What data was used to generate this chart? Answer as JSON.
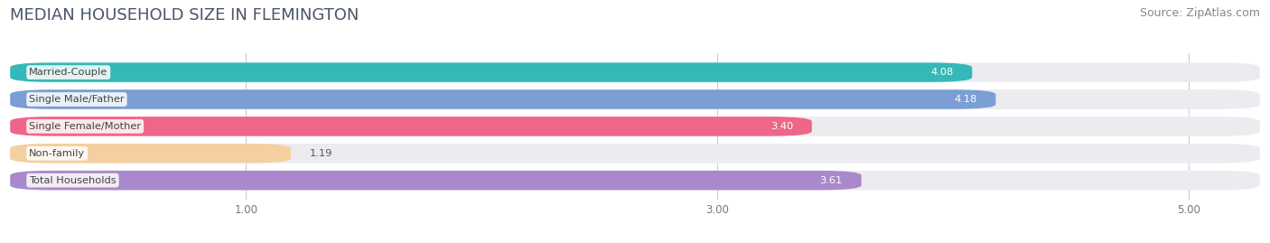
{
  "title": "MEDIAN HOUSEHOLD SIZE IN FLEMINGTON",
  "source": "Source: ZipAtlas.com",
  "categories": [
    "Married-Couple",
    "Single Male/Father",
    "Single Female/Mother",
    "Non-family",
    "Total Households"
  ],
  "values": [
    4.08,
    4.18,
    3.4,
    1.19,
    3.61
  ],
  "bar_colors": [
    "#36b8b8",
    "#7b9fd4",
    "#ee6688",
    "#f5cfa0",
    "#aa88cc"
  ],
  "bar_bg_color": "#ebebf0",
  "label_text_color": "#444444",
  "value_colors_inside": [
    "white",
    "white",
    "white",
    "#555555",
    "white"
  ],
  "xlim_left": 0.0,
  "xlim_right": 5.3,
  "xticks": [
    1.0,
    3.0,
    5.0
  ],
  "background_color": "#ffffff",
  "title_fontsize": 13,
  "source_fontsize": 9,
  "bar_height": 0.72,
  "bar_gap": 0.28
}
